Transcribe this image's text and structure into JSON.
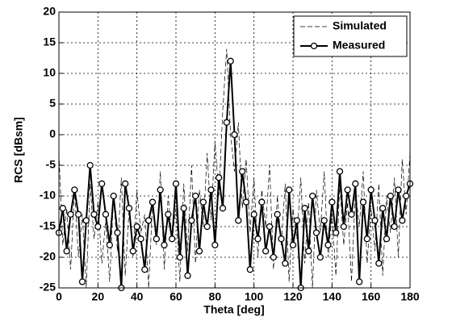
{
  "chart_data": {
    "type": "line",
    "xlabel": "Theta [deg]",
    "ylabel": "RCS [dBsm]",
    "x": [
      0,
      2,
      4,
      6,
      8,
      10,
      12,
      14,
      16,
      18,
      20,
      22,
      24,
      26,
      28,
      30,
      32,
      34,
      36,
      38,
      40,
      42,
      44,
      46,
      48,
      50,
      52,
      54,
      56,
      58,
      60,
      62,
      64,
      66,
      68,
      70,
      72,
      74,
      76,
      78,
      80,
      82,
      84,
      86,
      88,
      90,
      92,
      94,
      96,
      98,
      100,
      102,
      104,
      106,
      108,
      110,
      112,
      114,
      116,
      118,
      120,
      122,
      124,
      126,
      128,
      130,
      132,
      134,
      136,
      138,
      140,
      142,
      144,
      146,
      148,
      150,
      152,
      154,
      156,
      158,
      160,
      162,
      164,
      166,
      168,
      170,
      172,
      174,
      176,
      178,
      180
    ],
    "series": [
      {
        "name": "Simulated",
        "color": "#000000",
        "style": "dashed",
        "values": [
          -3,
          -18,
          -12,
          -22,
          -9,
          -20,
          -13,
          -25,
          -8,
          -17,
          -11,
          -21,
          -14,
          -24,
          -10,
          -19,
          -7,
          -23,
          -12,
          -20,
          -9,
          -16,
          -13,
          -25,
          -11,
          -18,
          -6,
          -22,
          -10,
          -17,
          -12,
          -24,
          -8,
          -19,
          -5,
          -21,
          -9,
          -15,
          -3,
          -14,
          -1,
          -10,
          4,
          14,
          0,
          -6,
          2,
          -12,
          -4,
          -16,
          -7,
          -20,
          -9,
          -15,
          -5,
          -22,
          -10,
          -18,
          -8,
          -24,
          -12,
          -17,
          -7,
          -21,
          -11,
          -25,
          -9,
          -16,
          -6,
          -20,
          -13,
          -23,
          -8,
          -18,
          -11,
          -24,
          -9,
          -15,
          -6,
          -21,
          -12,
          -19,
          -8,
          -23,
          -10,
          -16,
          -7,
          -20,
          -4,
          -13,
          -3
        ]
      },
      {
        "name": "Measured",
        "color": "#000000",
        "style": "solid",
        "marker": "circle",
        "values": [
          -16,
          -12,
          -19,
          -13,
          -9,
          -13,
          -24,
          -14,
          -5,
          -13,
          -15,
          -8,
          -13,
          -18,
          -10,
          -16,
          -25,
          -8,
          -12,
          -19,
          -15,
          -17,
          -22,
          -14,
          -11,
          -17,
          -9,
          -18,
          -13,
          -17,
          -8,
          -20,
          -12,
          -23,
          -14,
          -10,
          -19,
          -11,
          -15,
          -9,
          -18,
          -7,
          -12,
          2,
          12,
          0,
          -14,
          -6,
          -11,
          -22,
          -13,
          -17,
          -11,
          -19,
          -15,
          -20,
          -13,
          -17,
          -21,
          -9,
          -18,
          -14,
          -25,
          -12,
          -19,
          -10,
          -16,
          -20,
          -14,
          -18,
          -11,
          -16,
          -6,
          -15,
          -9,
          -13,
          -8,
          -24,
          -11,
          -17,
          -9,
          -14,
          -21,
          -12,
          -17,
          -10,
          -15,
          -9,
          -14,
          -10,
          -8
        ]
      }
    ],
    "xlim": [
      0,
      180
    ],
    "xticks": [
      0,
      20,
      40,
      60,
      80,
      100,
      120,
      140,
      160,
      180
    ],
    "ylim": [
      -25,
      20
    ],
    "yticks": [
      -25,
      -20,
      -15,
      -10,
      -5,
      0,
      5,
      10,
      15,
      20
    ],
    "grid": true,
    "legend": "northeast"
  }
}
